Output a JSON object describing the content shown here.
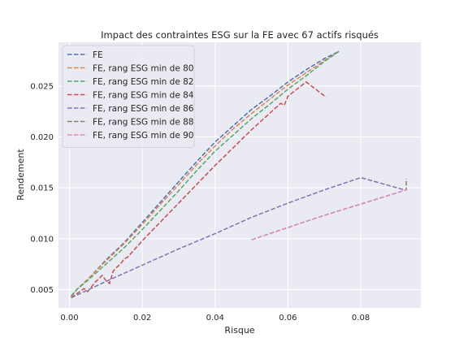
{
  "chart_data": {
    "type": "line",
    "title": "Impact des contraintes ESG sur la FE avec 67 actifs risqués",
    "xlabel": "Risque",
    "ylabel": "Rendement",
    "xlim": [
      -0.003,
      0.0965
    ],
    "ylim": [
      0.0032,
      0.0293
    ],
    "x_ticks": [
      0.0,
      0.02,
      0.04,
      0.06,
      0.08
    ],
    "x_tick_labels": [
      "0.00",
      "0.02",
      "0.04",
      "0.06",
      "0.08"
    ],
    "y_ticks": [
      0.005,
      0.01,
      0.015,
      0.02,
      0.025
    ],
    "y_tick_labels": [
      "0.005",
      "0.010",
      "0.015",
      "0.020",
      "0.025"
    ],
    "grid": true,
    "legend_position": "top-left",
    "line_style": "dashed",
    "series": [
      {
        "name": "FE",
        "color": "#4c72b0",
        "points": [
          [
            0.0005,
            0.0043
          ],
          [
            0.002,
            0.005
          ],
          [
            0.005,
            0.006
          ],
          [
            0.01,
            0.0079
          ],
          [
            0.015,
            0.0096
          ],
          [
            0.02,
            0.0116
          ],
          [
            0.025,
            0.0136
          ],
          [
            0.03,
            0.0156
          ],
          [
            0.035,
            0.0176
          ],
          [
            0.04,
            0.0195
          ],
          [
            0.045,
            0.0211
          ],
          [
            0.05,
            0.0227
          ],
          [
            0.055,
            0.024
          ],
          [
            0.06,
            0.0254
          ],
          [
            0.065,
            0.0266
          ],
          [
            0.07,
            0.0277
          ],
          [
            0.074,
            0.0284
          ]
        ]
      },
      {
        "name": "FE, rang ESG min de 80",
        "color": "#dd8452",
        "points": [
          [
            0.0005,
            0.0043
          ],
          [
            0.002,
            0.005
          ],
          [
            0.005,
            0.006
          ],
          [
            0.01,
            0.0078
          ],
          [
            0.015,
            0.0095
          ],
          [
            0.02,
            0.0114
          ],
          [
            0.025,
            0.0134
          ],
          [
            0.03,
            0.0153
          ],
          [
            0.035,
            0.0173
          ],
          [
            0.04,
            0.0191
          ],
          [
            0.045,
            0.0208
          ],
          [
            0.05,
            0.0223
          ],
          [
            0.055,
            0.0237
          ],
          [
            0.06,
            0.0251
          ],
          [
            0.065,
            0.0263
          ],
          [
            0.07,
            0.0275
          ],
          [
            0.074,
            0.0284
          ]
        ]
      },
      {
        "name": "FE, rang ESG min de 82",
        "color": "#55a868",
        "points": [
          [
            0.0005,
            0.0044
          ],
          [
            0.002,
            0.005
          ],
          [
            0.005,
            0.0059
          ],
          [
            0.01,
            0.0075
          ],
          [
            0.015,
            0.0091
          ],
          [
            0.02,
            0.0109
          ],
          [
            0.025,
            0.0128
          ],
          [
            0.03,
            0.0147
          ],
          [
            0.035,
            0.0167
          ],
          [
            0.04,
            0.0186
          ],
          [
            0.045,
            0.0202
          ],
          [
            0.05,
            0.0218
          ],
          [
            0.055,
            0.0232
          ],
          [
            0.06,
            0.0247
          ],
          [
            0.065,
            0.026
          ],
          [
            0.07,
            0.0274
          ],
          [
            0.074,
            0.0284
          ]
        ]
      },
      {
        "name": "FE, rang ESG min de 84",
        "color": "#c44e52",
        "points": [
          [
            0.0005,
            0.0042
          ],
          [
            0.002,
            0.0046
          ],
          [
            0.004,
            0.0051
          ],
          [
            0.005,
            0.0048
          ],
          [
            0.007,
            0.0057
          ],
          [
            0.009,
            0.0064
          ],
          [
            0.01,
            0.0059
          ],
          [
            0.011,
            0.0056
          ],
          [
            0.012,
            0.0068
          ],
          [
            0.013,
            0.0072
          ],
          [
            0.014,
            0.0075
          ],
          [
            0.015,
            0.008
          ],
          [
            0.016,
            0.0082
          ],
          [
            0.02,
            0.0098
          ],
          [
            0.03,
            0.0135
          ],
          [
            0.04,
            0.0172
          ],
          [
            0.05,
            0.0207
          ],
          [
            0.058,
            0.0233
          ],
          [
            0.059,
            0.0231
          ],
          [
            0.06,
            0.024
          ],
          [
            0.065,
            0.0254
          ],
          [
            0.0705,
            0.0239
          ]
        ]
      },
      {
        "name": "FE, rang ESG min de 86",
        "color": "#8172b3",
        "points": [
          [
            0.0005,
            0.0042
          ],
          [
            0.01,
            0.0058
          ],
          [
            0.02,
            0.0074
          ],
          [
            0.03,
            0.009
          ],
          [
            0.04,
            0.0105
          ],
          [
            0.05,
            0.0121
          ],
          [
            0.06,
            0.0135
          ],
          [
            0.07,
            0.0148
          ],
          [
            0.08,
            0.016
          ],
          [
            0.092,
            0.0148
          ]
        ]
      },
      {
        "name": "FE, rang ESG min de 88",
        "color": "#937860",
        "points": [
          [
            0.05,
            0.0099
          ],
          [
            0.06,
            0.0111
          ],
          [
            0.07,
            0.0123
          ],
          [
            0.08,
            0.0134
          ],
          [
            0.0925,
            0.0148
          ],
          [
            0.0925,
            0.0159
          ]
        ]
      },
      {
        "name": "FE, rang ESG min de 90",
        "color": "#da8bc3",
        "points": [
          [
            0.05,
            0.0099
          ],
          [
            0.06,
            0.0111
          ],
          [
            0.07,
            0.0123
          ],
          [
            0.08,
            0.0134
          ],
          [
            0.0925,
            0.0148
          ]
        ]
      }
    ]
  }
}
